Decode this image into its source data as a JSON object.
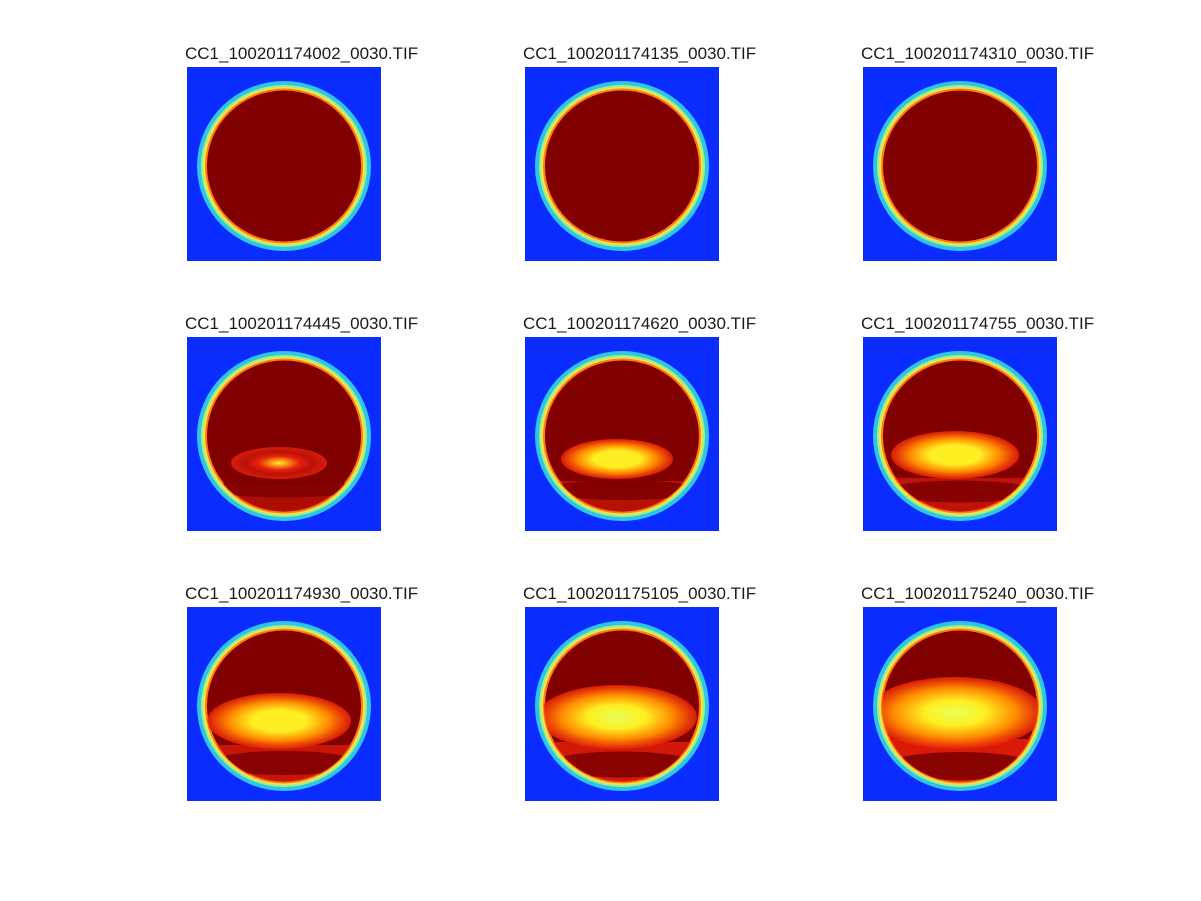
{
  "panels": [
    {
      "title": "CC1_100201174002_0030.TIF",
      "stage": 0
    },
    {
      "title": "CC1_100201174135_0030.TIF",
      "stage": 0
    },
    {
      "title": "CC1_100201174310_0030.TIF",
      "stage": 0
    },
    {
      "title": "CC1_100201174445_0030.TIF",
      "stage": 1
    },
    {
      "title": "CC1_100201174620_0030.TIF",
      "stage": 2
    },
    {
      "title": "CC1_100201174755_0030.TIF",
      "stage": 3
    },
    {
      "title": "CC1_100201174930_0030.TIF",
      "stage": 4
    },
    {
      "title": "CC1_100201175105_0030.TIF",
      "stage": 5
    },
    {
      "title": "CC1_100201175240_0030.TIF",
      "stage": 6
    }
  ],
  "colors": {
    "background_blue": "#0a2cff",
    "ring_cyan": "#33d6e6",
    "ring_yellow": "#f5e63c",
    "ring_orange": "#ff7a1a",
    "disk_dark_red": "#800000",
    "hot_red": "#e8200a",
    "hot_orange": "#ff8a00",
    "hot_yellow": "#ffee22"
  }
}
